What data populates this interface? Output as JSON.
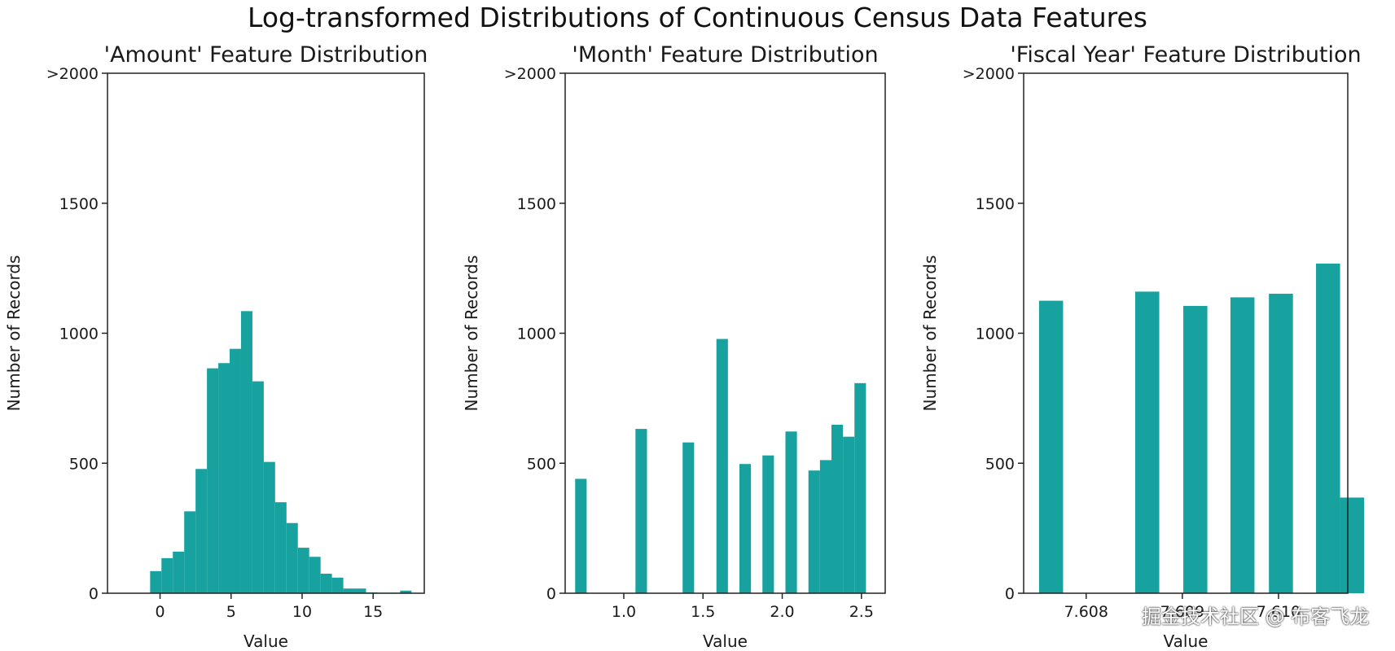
{
  "title": "Log-transformed Distributions of Continuous Census Data Features",
  "bar_color": "#17a2a0",
  "watermark": "掘金技术社区 @ 布客飞龙",
  "chart_data": [
    {
      "type": "bar",
      "title": "'Amount' Feature Distribution",
      "xlabel": "Value",
      "ylabel": "Number of Records",
      "xlim": [
        -3.7,
        18.6
      ],
      "ylim": [
        0,
        2000
      ],
      "xticks": [
        0,
        5,
        10,
        15
      ],
      "xtick_labels": [
        "0",
        "5",
        "10",
        "15"
      ],
      "yticks": [
        0,
        500,
        1000,
        1500,
        2000
      ],
      "ytick_labels": [
        "0",
        "500",
        "1000",
        "1500",
        ">2000"
      ],
      "bins": [
        {
          "x0": -0.7,
          "x1": 0.1,
          "y": 85
        },
        {
          "x0": 0.1,
          "x1": 0.9,
          "y": 135
        },
        {
          "x0": 0.9,
          "x1": 1.7,
          "y": 160
        },
        {
          "x0": 1.7,
          "x1": 2.5,
          "y": 315
        },
        {
          "x0": 2.5,
          "x1": 3.3,
          "y": 478
        },
        {
          "x0": 3.3,
          "x1": 4.1,
          "y": 865
        },
        {
          "x0": 4.1,
          "x1": 4.9,
          "y": 885
        },
        {
          "x0": 4.9,
          "x1": 5.7,
          "y": 940
        },
        {
          "x0": 5.7,
          "x1": 6.5,
          "y": 1085
        },
        {
          "x0": 6.5,
          "x1": 7.3,
          "y": 815
        },
        {
          "x0": 7.3,
          "x1": 8.1,
          "y": 505
        },
        {
          "x0": 8.1,
          "x1": 8.9,
          "y": 350
        },
        {
          "x0": 8.9,
          "x1": 9.7,
          "y": 270
        },
        {
          "x0": 9.7,
          "x1": 10.5,
          "y": 175
        },
        {
          "x0": 10.5,
          "x1": 11.3,
          "y": 140
        },
        {
          "x0": 11.3,
          "x1": 12.1,
          "y": 75
        },
        {
          "x0": 12.1,
          "x1": 12.9,
          "y": 60
        },
        {
          "x0": 12.9,
          "x1": 13.7,
          "y": 18
        },
        {
          "x0": 13.7,
          "x1": 14.5,
          "y": 18
        },
        {
          "x0": 14.5,
          "x1": 15.3,
          "y": 3
        },
        {
          "x0": 15.3,
          "x1": 16.1,
          "y": 2
        },
        {
          "x0": 16.1,
          "x1": 16.9,
          "y": 2
        },
        {
          "x0": 16.9,
          "x1": 17.7,
          "y": 10
        }
      ]
    },
    {
      "type": "bar",
      "title": "'Month' Feature Distribution",
      "xlabel": "Value",
      "ylabel": "Number of Records",
      "xlim": [
        0.63,
        2.65
      ],
      "ylim": [
        0,
        2000
      ],
      "xticks": [
        1.0,
        1.5,
        2.0,
        2.5
      ],
      "xtick_labels": [
        "1.0",
        "1.5",
        "2.0",
        "2.5"
      ],
      "yticks": [
        0,
        500,
        1000,
        1500,
        2000
      ],
      "ytick_labels": [
        "0",
        "500",
        "1000",
        "1500",
        ">2000"
      ],
      "bins": [
        {
          "x0": 0.693,
          "x1": 0.7656,
          "y": 440
        },
        {
          "x0": 1.0737,
          "x1": 1.1463,
          "y": 632
        },
        {
          "x0": 1.3713,
          "x1": 1.4439,
          "y": 580
        },
        {
          "x0": 1.5847,
          "x1": 1.6573,
          "y": 978
        },
        {
          "x0": 1.7299,
          "x1": 1.8025,
          "y": 497
        },
        {
          "x0": 1.8751,
          "x1": 1.9477,
          "y": 530
        },
        {
          "x0": 2.0203,
          "x1": 2.0929,
          "y": 622
        },
        {
          "x0": 2.1655,
          "x1": 2.2381,
          "y": 472
        },
        {
          "x0": 2.2381,
          "x1": 2.3107,
          "y": 512
        },
        {
          "x0": 2.3107,
          "x1": 2.3833,
          "y": 648
        },
        {
          "x0": 2.3833,
          "x1": 2.4559,
          "y": 602
        },
        {
          "x0": 2.4559,
          "x1": 2.5285,
          "y": 808
        }
      ]
    },
    {
      "type": "bar",
      "title": "'Fiscal Year' Feature Distribution",
      "xlabel": "Value",
      "ylabel": "Number of Records",
      "xlim": [
        7.60735,
        7.61072
      ],
      "ylim": [
        0,
        2000
      ],
      "xticks": [
        7.608,
        7.609,
        7.61
      ],
      "xtick_labels": [
        "7.608",
        "7.609",
        "7.610"
      ],
      "yticks": [
        0,
        500,
        1000,
        1500,
        2000
      ],
      "ytick_labels": [
        "0",
        "500",
        "1000",
        "1500",
        ">2000"
      ],
      "bins": [
        {
          "x0": 7.60751,
          "x1": 7.60776,
          "y": 1125
        },
        {
          "x0": 7.60851,
          "x1": 7.60876,
          "y": 1160
        },
        {
          "x0": 7.60901,
          "x1": 7.60926,
          "y": 1105
        },
        {
          "x0": 7.6095,
          "x1": 7.60975,
          "y": 1138
        },
        {
          "x0": 7.6099,
          "x1": 7.61015,
          "y": 1152
        },
        {
          "x0": 7.61039,
          "x1": 7.61064,
          "y": 1268
        },
        {
          "x0": 7.61064,
          "x1": 7.61089,
          "y": 368
        }
      ]
    }
  ]
}
